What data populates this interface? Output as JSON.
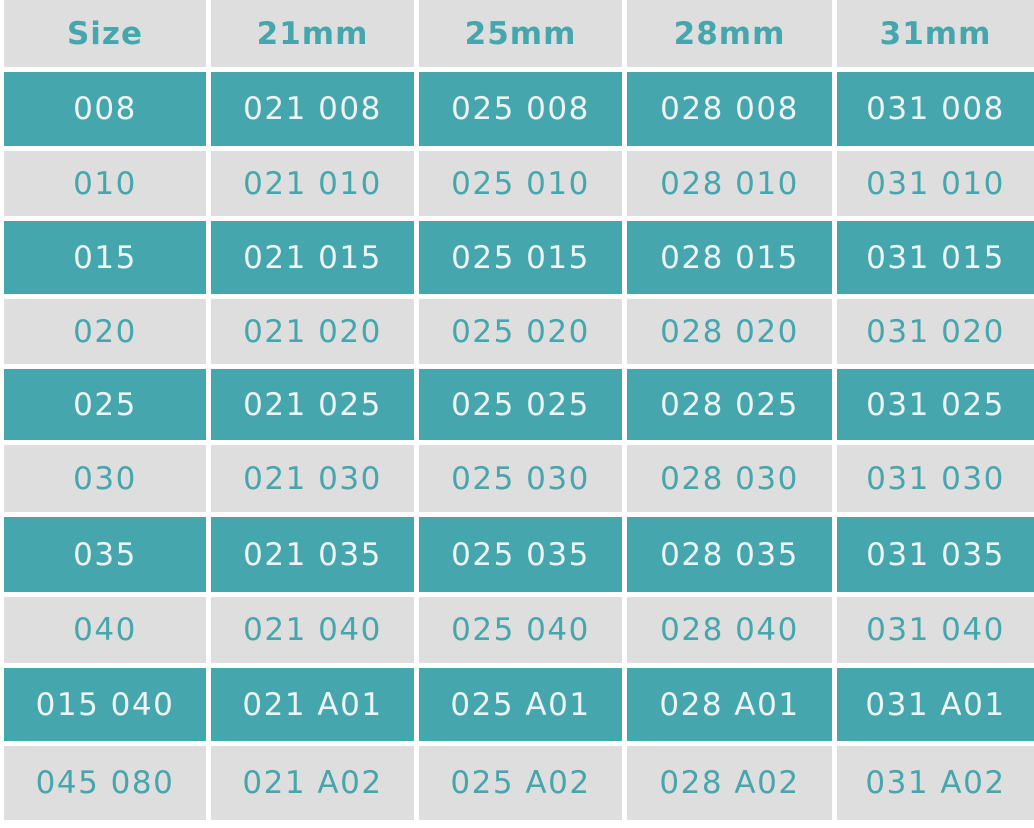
{
  "colors": {
    "teal": "#45a6ad",
    "gray": "#dedede",
    "white_text": "#eef3f3"
  },
  "table": {
    "headers": [
      "Size",
      "21mm",
      "25mm",
      "28mm",
      "31mm"
    ],
    "rows": [
      [
        "008",
        "021 008",
        "025 008",
        "028 008",
        "031 008"
      ],
      [
        "010",
        "021 010",
        "025 010",
        "028 010",
        "031 010"
      ],
      [
        "015",
        "021 015",
        "025 015",
        "028 015",
        "031 015"
      ],
      [
        "020",
        "021 020",
        "025 020",
        "028 020",
        "031 020"
      ],
      [
        "025",
        "021 025",
        "025 025",
        "028 025",
        "031 025"
      ],
      [
        "030",
        "021 030",
        "025 030",
        "028 030",
        "031 030"
      ],
      [
        "035",
        "021 035",
        "025 035",
        "028 035",
        "031 035"
      ],
      [
        "040",
        "021 040",
        "025 040",
        "028 040",
        "031 040"
      ],
      [
        "015 040",
        "021 A01",
        "025 A01",
        "028 A01",
        "031 A01"
      ],
      [
        "045 080",
        "021 A02",
        "025 A02",
        "028 A02",
        "031 A02"
      ]
    ]
  }
}
